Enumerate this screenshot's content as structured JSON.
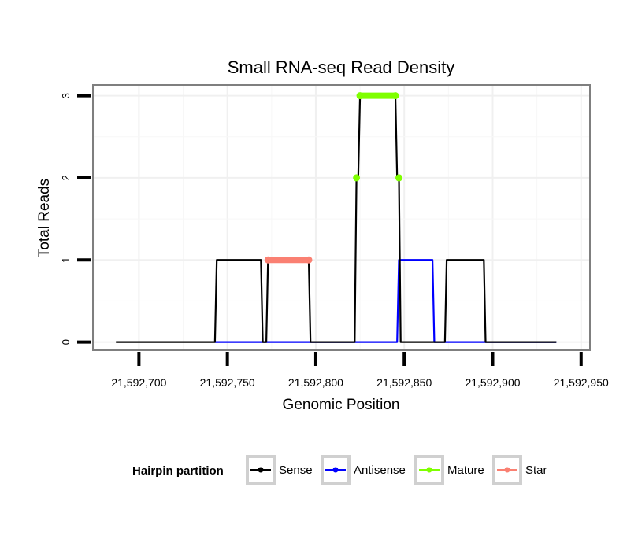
{
  "chart_data": {
    "type": "line",
    "title": "Small RNA-seq Read Density",
    "xlabel": "Genomic Position",
    "ylabel": "Total Reads",
    "xlim": [
      21592674,
      21592955
    ],
    "ylim": [
      -0.1,
      3.13
    ],
    "x_ticks": [
      21592700,
      21592750,
      21592800,
      21592850,
      21592900,
      21592950
    ],
    "x_tick_labels": [
      "21,592,700",
      "21,592,750",
      "21,592,800",
      "21,592,850",
      "21,592,900",
      "21,592,950"
    ],
    "y_ticks": [
      0,
      1,
      2,
      3
    ],
    "y_tick_labels": [
      "0",
      "1",
      "2",
      "3"
    ],
    "grid": true,
    "series": [
      {
        "name": "Sense",
        "color": "#000000",
        "x": [
          21592687,
          21592743,
          21592744,
          21592769,
          21592770,
          21592772,
          21592773,
          21592796,
          21592797,
          21592822,
          21592823,
          21592824,
          21592825,
          21592845,
          21592846,
          21592847,
          21592848,
          21592849,
          21592850,
          21592867,
          21592873,
          21592874,
          21592895,
          21592896,
          21592936
        ],
        "y": [
          0,
          0,
          1,
          1,
          0,
          0,
          1,
          1,
          0,
          0,
          2,
          2,
          3,
          3,
          2,
          2,
          0,
          0,
          0,
          0,
          0,
          1,
          1,
          0,
          0
        ]
      },
      {
        "name": "Antisense",
        "color": "#0000ff",
        "x": [
          21592743,
          21592846,
          21592847,
          21592866,
          21592867,
          21592936
        ],
        "y": [
          0,
          0,
          1,
          1,
          0,
          0
        ]
      },
      {
        "name": "Mature",
        "color": "#7fff00",
        "x": [
          21592823,
          21592825,
          21592845,
          21592847
        ],
        "y": [
          2,
          3,
          3,
          2
        ]
      },
      {
        "name": "Star",
        "color": "#fa8072",
        "x": [
          21592773,
          21592796
        ],
        "y": [
          1,
          1
        ]
      }
    ],
    "legend": {
      "title": "Hairpin partition",
      "placement": "bottom",
      "entries": [
        "Sense",
        "Antisense",
        "Mature",
        "Star"
      ]
    }
  }
}
